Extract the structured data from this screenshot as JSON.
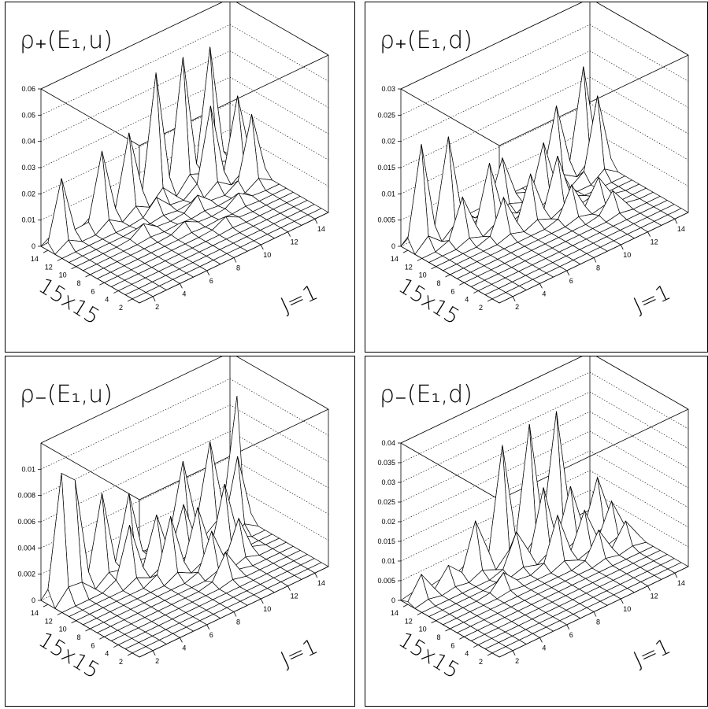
{
  "chart_data": [
    {
      "type": "surface",
      "title": "ρ₊(E₁,u)",
      "zticks": [
        "0",
        "0.01",
        "0.02",
        "0.03",
        "0.04",
        "0.05",
        "0.06"
      ],
      "zlim": [
        0,
        0.06
      ],
      "xticks": [
        "2",
        "4",
        "6",
        "8",
        "10",
        "12",
        "14"
      ],
      "yticks": [
        "2",
        "4",
        "6",
        "8",
        "10",
        "12",
        "14"
      ],
      "xlabel": "J=1",
      "ylabel": "15x15",
      "grid_size": 15,
      "peaks": [
        {
          "i": 13,
          "j": 1,
          "z": 0.025
        },
        {
          "i": 13,
          "j": 4,
          "z": 0.028
        },
        {
          "i": 13,
          "j": 6,
          "z": 0.03
        },
        {
          "i": 13,
          "j": 8,
          "z": 0.048
        },
        {
          "i": 13,
          "j": 10,
          "z": 0.049
        },
        {
          "i": 13,
          "j": 12,
          "z": 0.048
        },
        {
          "i": 11,
          "j": 11,
          "z": 0.031
        },
        {
          "i": 11,
          "j": 13,
          "z": 0.03
        },
        {
          "i": 9,
          "j": 13,
          "z": 0.026
        },
        {
          "i": 11,
          "j": 7,
          "z": 0.006
        },
        {
          "i": 9,
          "j": 9,
          "z": 0.005
        },
        {
          "i": 7,
          "j": 11,
          "z": 0.004
        },
        {
          "i": 9,
          "j": 5,
          "z": 0.004
        },
        {
          "i": 7,
          "j": 7,
          "z": 0.003
        },
        {
          "i": 5,
          "j": 9,
          "z": 0.003
        }
      ]
    },
    {
      "type": "surface",
      "title": "ρ₊(E₁,d)",
      "zticks": [
        "0",
        "0.005",
        "0.01",
        "0.015",
        "0.02",
        "0.025",
        "0.03"
      ],
      "zlim": [
        0,
        0.03
      ],
      "xticks": [
        "2",
        "4",
        "6",
        "8",
        "10",
        "12",
        "14"
      ],
      "yticks": [
        "2",
        "4",
        "6",
        "8",
        "10",
        "12",
        "14"
      ],
      "xlabel": "J=1",
      "ylabel": "15x15",
      "grid_size": 15,
      "peaks": [
        {
          "i": 13,
          "j": 1,
          "z": 0.019
        },
        {
          "i": 13,
          "j": 3,
          "z": 0.018
        },
        {
          "i": 11,
          "j": 3,
          "z": 0.008
        },
        {
          "i": 11,
          "j": 5,
          "z": 0.012
        },
        {
          "i": 9,
          "j": 5,
          "z": 0.007
        },
        {
          "i": 9,
          "j": 7,
          "z": 0.009
        },
        {
          "i": 9,
          "j": 9,
          "z": 0.01
        },
        {
          "i": 11,
          "j": 9,
          "z": 0.011
        },
        {
          "i": 13,
          "j": 11,
          "z": 0.014
        },
        {
          "i": 13,
          "j": 13,
          "z": 0.019
        },
        {
          "i": 11,
          "j": 13,
          "z": 0.015
        },
        {
          "i": 7,
          "j": 9,
          "z": 0.006
        },
        {
          "i": 7,
          "j": 11,
          "z": 0.005
        },
        {
          "i": 5,
          "j": 11,
          "z": 0.004
        },
        {
          "i": 13,
          "j": 7,
          "z": 0.009
        }
      ]
    },
    {
      "type": "surface",
      "title": "ρ₋(E₁,u)",
      "zticks": [
        "0",
        "0.002",
        "0.004",
        "0.006",
        "0.008",
        "0.01"
      ],
      "zlim": [
        0,
        0.012
      ],
      "xticks": [
        "2",
        "4",
        "6",
        "8",
        "10",
        "12",
        "14"
      ],
      "yticks": [
        "2",
        "4",
        "6",
        "8",
        "10",
        "12",
        "14"
      ],
      "xlabel": "J=1",
      "ylabel": "15x15",
      "grid_size": 15,
      "peaks": [
        {
          "i": 13,
          "j": 1,
          "z": 0.0095
        },
        {
          "i": 13,
          "j": 2,
          "z": 0.0085
        },
        {
          "i": 13,
          "j": 4,
          "z": 0.0065
        },
        {
          "i": 13,
          "j": 6,
          "z": 0.0055
        },
        {
          "i": 11,
          "j": 5,
          "z": 0.0042
        },
        {
          "i": 11,
          "j": 7,
          "z": 0.004
        },
        {
          "i": 9,
          "j": 7,
          "z": 0.0045
        },
        {
          "i": 9,
          "j": 9,
          "z": 0.0042
        },
        {
          "i": 11,
          "j": 9,
          "z": 0.0038
        },
        {
          "i": 13,
          "j": 10,
          "z": 0.006
        },
        {
          "i": 13,
          "j": 12,
          "z": 0.0065
        },
        {
          "i": 13,
          "j": 14,
          "z": 0.009
        },
        {
          "i": 11,
          "j": 13,
          "z": 0.0055
        },
        {
          "i": 9,
          "j": 11,
          "z": 0.005
        },
        {
          "i": 7,
          "j": 9,
          "z": 0.003
        },
        {
          "i": 7,
          "j": 11,
          "z": 0.003
        },
        {
          "i": 5,
          "j": 9,
          "z": 0.002
        }
      ]
    },
    {
      "type": "surface",
      "title": "ρ₋(E₁,d)",
      "zticks": [
        "0",
        "0.005",
        "0.01",
        "0.015",
        "0.02",
        "0.025",
        "0.03",
        "0.035",
        "0.04"
      ],
      "zlim": [
        0,
        0.04
      ],
      "xticks": [
        "2",
        "4",
        "6",
        "8",
        "10",
        "12",
        "14"
      ],
      "yticks": [
        "2",
        "4",
        "6",
        "8",
        "10",
        "12",
        "14"
      ],
      "xlabel": "J=1",
      "ylabel": "15x15",
      "grid_size": 15,
      "peaks": [
        {
          "i": 13,
          "j": 1,
          "z": 0.006
        },
        {
          "i": 13,
          "j": 3,
          "z": 0.005
        },
        {
          "i": 13,
          "j": 5,
          "z": 0.013
        },
        {
          "i": 13,
          "j": 7,
          "z": 0.029
        },
        {
          "i": 13,
          "j": 9,
          "z": 0.031
        },
        {
          "i": 13,
          "j": 11,
          "z": 0.031
        },
        {
          "i": 11,
          "j": 9,
          "z": 0.017
        },
        {
          "i": 11,
          "j": 11,
          "z": 0.014
        },
        {
          "i": 11,
          "j": 13,
          "z": 0.013
        },
        {
          "i": 9,
          "j": 9,
          "z": 0.012
        },
        {
          "i": 9,
          "j": 11,
          "z": 0.01
        },
        {
          "i": 9,
          "j": 13,
          "z": 0.009
        },
        {
          "i": 7,
          "j": 11,
          "z": 0.007
        },
        {
          "i": 7,
          "j": 13,
          "z": 0.006
        },
        {
          "i": 11,
          "j": 7,
          "z": 0.009
        },
        {
          "i": 9,
          "j": 5,
          "z": 0.004
        }
      ]
    }
  ]
}
